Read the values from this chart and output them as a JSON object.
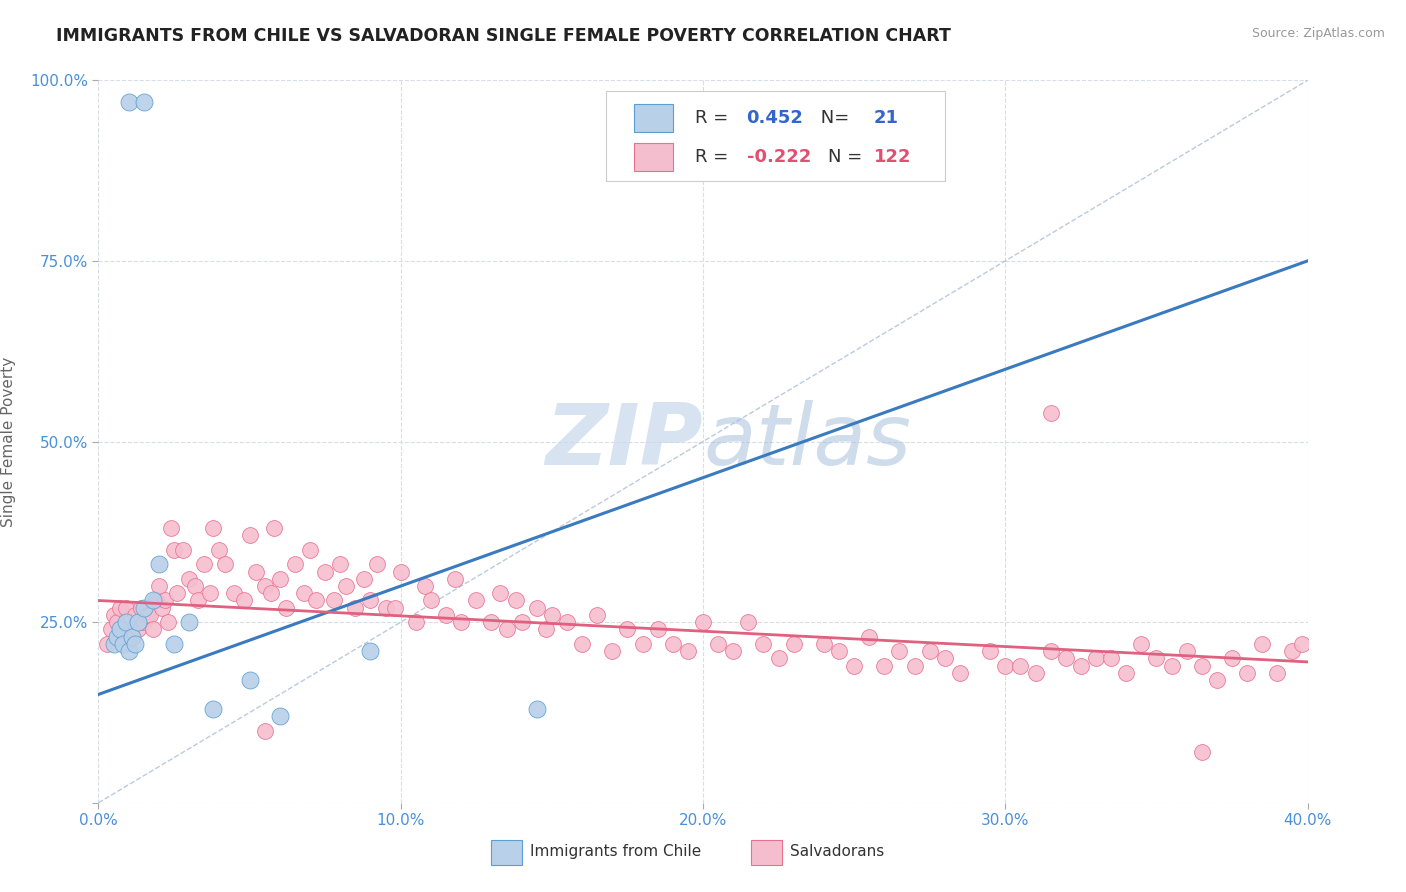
{
  "title": "IMMIGRANTS FROM CHILE VS SALVADORAN SINGLE FEMALE POVERTY CORRELATION CHART",
  "source": "Source: ZipAtlas.com",
  "ylabel": "Single Female Poverty",
  "xlim": [
    0.0,
    0.4
  ],
  "ylim": [
    0.0,
    1.0
  ],
  "xticks": [
    0.0,
    0.1,
    0.2,
    0.3,
    0.4
  ],
  "yticks": [
    0.0,
    0.25,
    0.5,
    0.75,
    1.0
  ],
  "xticklabels": [
    "0.0%",
    "10.0%",
    "20.0%",
    "30.0%",
    "40.0%"
  ],
  "yticklabels": [
    "",
    "25.0%",
    "50.0%",
    "75.0%",
    "100.0%"
  ],
  "r_chile": 0.452,
  "n_chile": 21,
  "r_salvador": -0.222,
  "n_salvador": 122,
  "chile_color": "#b8d0e8",
  "salvador_color": "#f5bece",
  "chile_edge_color": "#5a9fd4",
  "salvador_edge_color": "#e87090",
  "chile_line_color": "#3a7abf",
  "salvador_line_color": "#e06080",
  "ref_line_color": "#aabdd4",
  "background_color": "#ffffff",
  "grid_color": "#d8dde8",
  "watermark_color": "#ccd8e8",
  "chile_line_x0": 0.0,
  "chile_line_y0": 0.15,
  "chile_line_x1": 0.4,
  "chile_line_y1": 0.75,
  "sal_line_x0": 0.0,
  "sal_line_y0": 0.28,
  "sal_line_x1": 0.4,
  "sal_line_y1": 0.195,
  "chile_pts_x": [
    0.01,
    0.015,
    0.005,
    0.006,
    0.007,
    0.008,
    0.009,
    0.01,
    0.011,
    0.012,
    0.013,
    0.015,
    0.018,
    0.02,
    0.025,
    0.03,
    0.038,
    0.05,
    0.06,
    0.09,
    0.145
  ],
  "chile_pts_y": [
    0.97,
    0.97,
    0.22,
    0.23,
    0.24,
    0.22,
    0.25,
    0.21,
    0.23,
    0.22,
    0.25,
    0.27,
    0.28,
    0.33,
    0.22,
    0.25,
    0.13,
    0.17,
    0.12,
    0.21,
    0.13
  ],
  "sal_pts_x": [
    0.003,
    0.004,
    0.005,
    0.006,
    0.007,
    0.008,
    0.009,
    0.01,
    0.011,
    0.012,
    0.013,
    0.014,
    0.015,
    0.016,
    0.017,
    0.018,
    0.019,
    0.02,
    0.021,
    0.022,
    0.023,
    0.024,
    0.025,
    0.026,
    0.028,
    0.03,
    0.032,
    0.033,
    0.035,
    0.037,
    0.038,
    0.04,
    0.042,
    0.045,
    0.048,
    0.05,
    0.052,
    0.055,
    0.057,
    0.058,
    0.06,
    0.062,
    0.065,
    0.068,
    0.07,
    0.072,
    0.075,
    0.078,
    0.08,
    0.082,
    0.085,
    0.088,
    0.09,
    0.092,
    0.095,
    0.098,
    0.1,
    0.105,
    0.108,
    0.11,
    0.115,
    0.118,
    0.12,
    0.125,
    0.13,
    0.133,
    0.135,
    0.138,
    0.14,
    0.145,
    0.148,
    0.15,
    0.155,
    0.16,
    0.165,
    0.17,
    0.175,
    0.18,
    0.185,
    0.19,
    0.195,
    0.2,
    0.205,
    0.21,
    0.215,
    0.22,
    0.225,
    0.23,
    0.24,
    0.245,
    0.25,
    0.255,
    0.26,
    0.265,
    0.27,
    0.275,
    0.28,
    0.285,
    0.295,
    0.3,
    0.305,
    0.31,
    0.315,
    0.32,
    0.325,
    0.33,
    0.335,
    0.34,
    0.345,
    0.35,
    0.355,
    0.36,
    0.365,
    0.37,
    0.375,
    0.38,
    0.385,
    0.39,
    0.395,
    0.398,
    0.315,
    0.365,
    0.055
  ],
  "sal_pts_y": [
    0.22,
    0.24,
    0.26,
    0.25,
    0.27,
    0.23,
    0.27,
    0.24,
    0.23,
    0.26,
    0.24,
    0.27,
    0.25,
    0.26,
    0.26,
    0.24,
    0.28,
    0.3,
    0.27,
    0.28,
    0.25,
    0.38,
    0.35,
    0.29,
    0.35,
    0.31,
    0.3,
    0.28,
    0.33,
    0.29,
    0.38,
    0.35,
    0.33,
    0.29,
    0.28,
    0.37,
    0.32,
    0.3,
    0.29,
    0.38,
    0.31,
    0.27,
    0.33,
    0.29,
    0.35,
    0.28,
    0.32,
    0.28,
    0.33,
    0.3,
    0.27,
    0.31,
    0.28,
    0.33,
    0.27,
    0.27,
    0.32,
    0.25,
    0.3,
    0.28,
    0.26,
    0.31,
    0.25,
    0.28,
    0.25,
    0.29,
    0.24,
    0.28,
    0.25,
    0.27,
    0.24,
    0.26,
    0.25,
    0.22,
    0.26,
    0.21,
    0.24,
    0.22,
    0.24,
    0.22,
    0.21,
    0.25,
    0.22,
    0.21,
    0.25,
    0.22,
    0.2,
    0.22,
    0.22,
    0.21,
    0.19,
    0.23,
    0.19,
    0.21,
    0.19,
    0.21,
    0.2,
    0.18,
    0.21,
    0.19,
    0.19,
    0.18,
    0.21,
    0.2,
    0.19,
    0.2,
    0.2,
    0.18,
    0.22,
    0.2,
    0.19,
    0.21,
    0.19,
    0.17,
    0.2,
    0.18,
    0.22,
    0.18,
    0.21,
    0.22,
    0.54,
    0.07,
    0.1
  ]
}
